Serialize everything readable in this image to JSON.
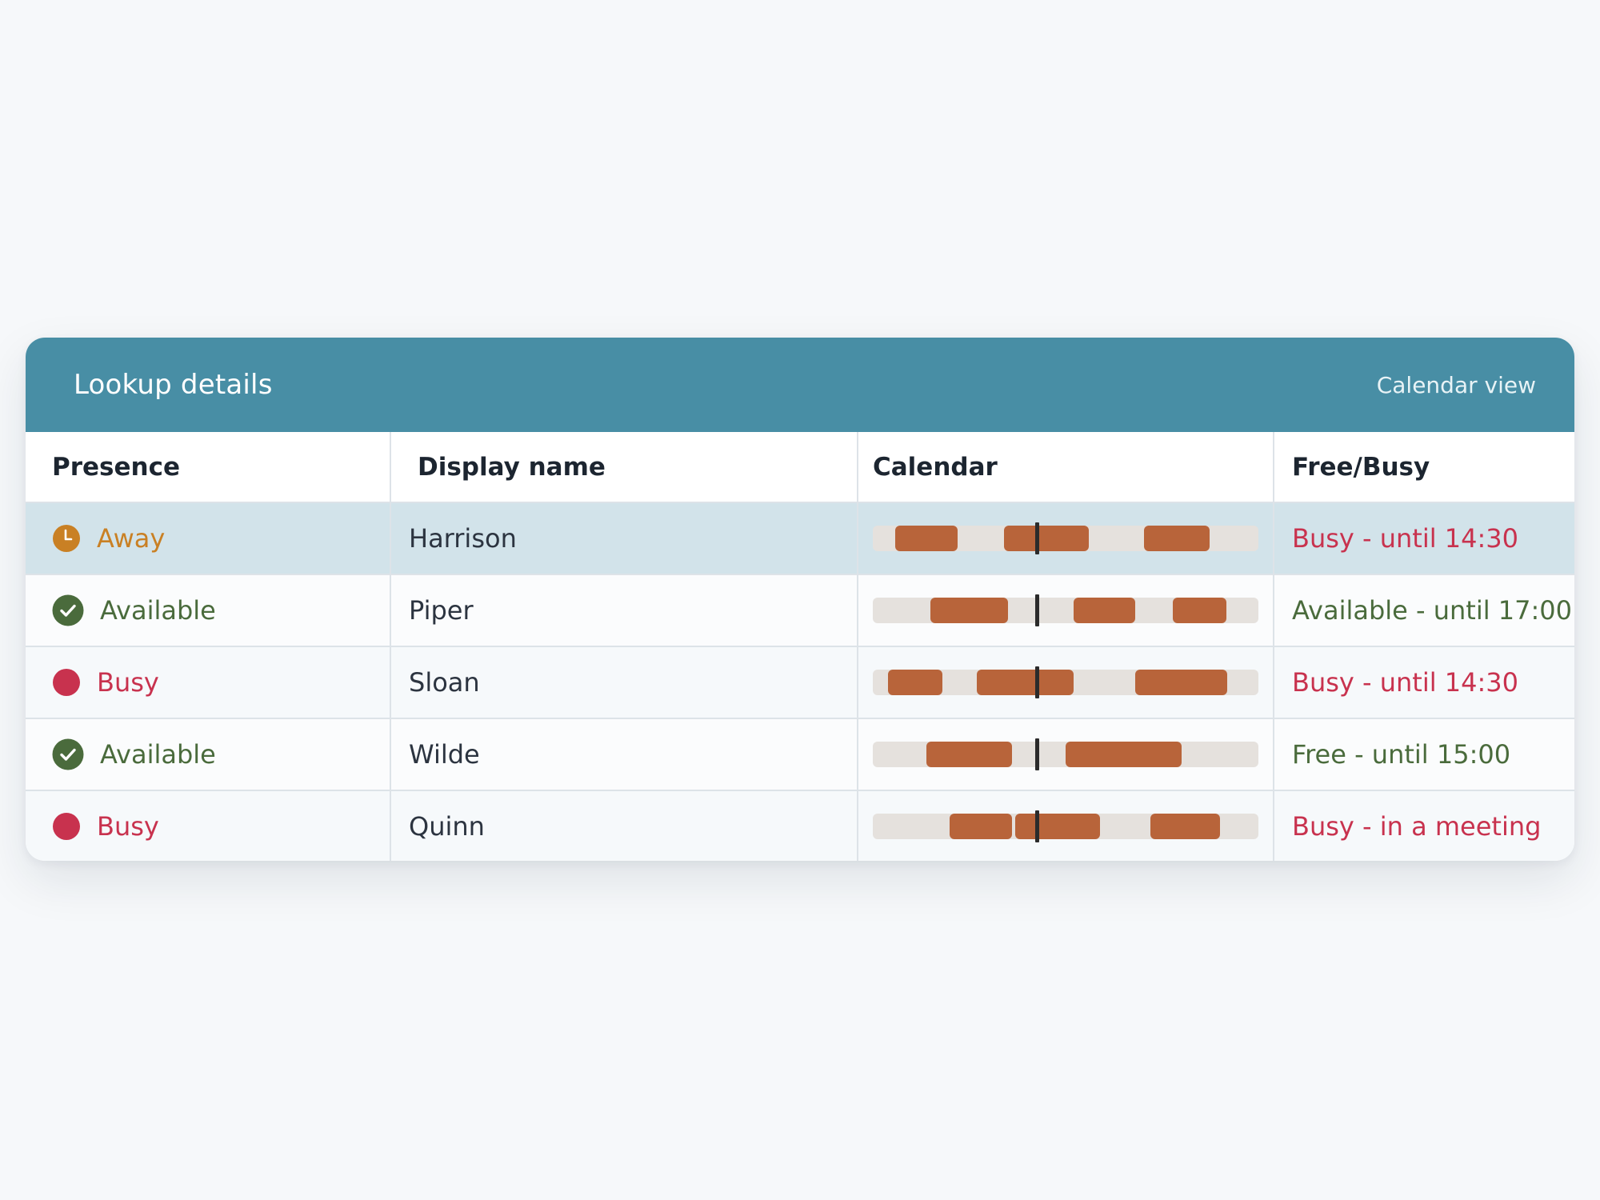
{
  "header": {
    "title": "Lookup details",
    "link": "Calendar view"
  },
  "columns": [
    "Presence",
    "Display name",
    "Calendar",
    "Free/Busy"
  ],
  "colors": {
    "header_bg": "#488ea5",
    "away": "#c98024",
    "available": "#4a6b3c",
    "busy": "#c8324e",
    "calendar_block": "#b8643a",
    "calendar_track": "#e5e1dd",
    "selected_row": "#d2e3ea"
  },
  "calendar_now": 0.425,
  "rows": [
    {
      "presence": "Away",
      "presence_icon": "clock-icon",
      "status": "away",
      "name": "Harrison",
      "freebusy": "Busy - until 14:30",
      "freebusy_status": "busy",
      "selected": true,
      "busy_blocks": [
        [
          0.058,
          0.22
        ],
        [
          0.34,
          0.56
        ],
        [
          0.703,
          0.873
        ]
      ]
    },
    {
      "presence": "Available",
      "presence_icon": "check-icon",
      "status": "available",
      "name": "Piper",
      "freebusy": "Available - until 17:00",
      "freebusy_status": "available",
      "selected": false,
      "busy_blocks": [
        [
          0.15,
          0.35
        ],
        [
          0.52,
          0.68
        ],
        [
          0.778,
          0.917
        ]
      ]
    },
    {
      "presence": "Busy",
      "presence_icon": "busy-dot-icon",
      "status": "busy",
      "name": "Sloan",
      "freebusy": "Busy - until 14:30",
      "freebusy_status": "busy",
      "selected": false,
      "busy_blocks": [
        [
          0.04,
          0.18
        ],
        [
          0.27,
          0.52
        ],
        [
          0.68,
          0.92
        ]
      ]
    },
    {
      "presence": "Available",
      "presence_icon": "check-icon",
      "status": "available",
      "name": "Wilde",
      "freebusy": "Free - until 15:00",
      "freebusy_status": "available",
      "selected": false,
      "busy_blocks": [
        [
          0.14,
          0.36
        ],
        [
          0.5,
          0.8
        ]
      ]
    },
    {
      "presence": "Busy",
      "presence_icon": "busy-dot-icon",
      "status": "busy",
      "name": "Quinn",
      "freebusy": "Busy - in a meeting",
      "freebusy_status": "busy",
      "selected": false,
      "busy_blocks": [
        [
          0.2,
          0.36
        ],
        [
          0.37,
          0.59
        ],
        [
          0.72,
          0.9
        ]
      ]
    }
  ]
}
